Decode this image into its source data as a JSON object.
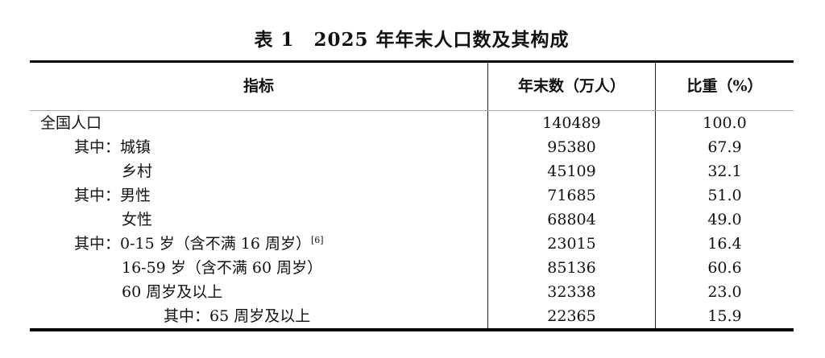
{
  "title": "表 1　2025 年年末人口数及其构成",
  "table": {
    "columns": {
      "indicator": "指标",
      "value": "年末数（万人）",
      "share": "比重（%）"
    },
    "rows": [
      {
        "indicator": "全国人口",
        "value": "140489",
        "share": "100.0",
        "indent": 0
      },
      {
        "indicator": "其中：城镇",
        "value": "95380",
        "share": "67.9",
        "indent": 1
      },
      {
        "indicator": "乡村",
        "value": "45109",
        "share": "32.1",
        "indent": 2
      },
      {
        "indicator": "其中：男性",
        "value": "71685",
        "share": "51.0",
        "indent": 1
      },
      {
        "indicator": "女性",
        "value": "68804",
        "share": "49.0",
        "indent": 2
      },
      {
        "indicator": "其中：0-15 岁（含不满 16 周岁）",
        "superscript": "[6]",
        "value": "23015",
        "share": "16.4",
        "indent": 1
      },
      {
        "indicator": "16-59 岁（含不满 60 周岁）",
        "value": "85136",
        "share": "60.6",
        "indent": 2
      },
      {
        "indicator": "60 周岁及以上",
        "value": "32338",
        "share": "23.0",
        "indent": 2
      },
      {
        "indicator": "其中：65 周岁及以上",
        "value": "22365",
        "share": "15.9",
        "indent": 3
      }
    ]
  },
  "colors": {
    "background": "#ffffff",
    "text": "#111111",
    "thick_rule": "#000000",
    "header_underline": "#a8a8a8",
    "column_separator": "#1f1f1f"
  }
}
